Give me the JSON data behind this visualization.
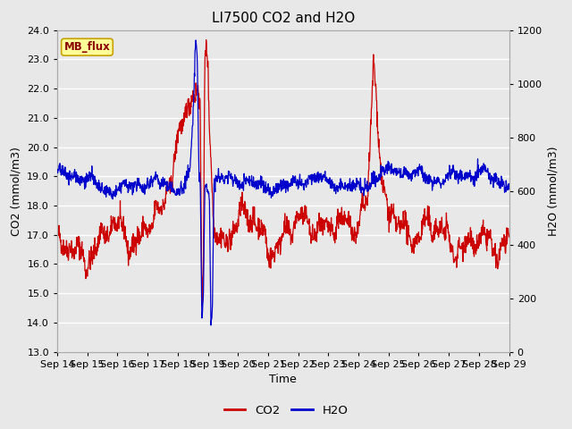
{
  "title": "LI7500 CO2 and H2O",
  "xlabel": "Time",
  "ylabel_left": "CO2 (mmol/m3)",
  "ylabel_right": "H2O (mmol/m3)",
  "ylim_left": [
    13.0,
    24.0
  ],
  "ylim_right": [
    0,
    1200
  ],
  "yticks_left": [
    13.0,
    14.0,
    15.0,
    16.0,
    17.0,
    18.0,
    19.0,
    20.0,
    21.0,
    22.0,
    23.0,
    24.0
  ],
  "ytick_labels_left": [
    "13.0",
    "14.0",
    "15.0",
    "16.0",
    "17.0",
    "18.0",
    "19.0",
    "20.0",
    "21.0",
    "22.0",
    "23.0",
    "24.0"
  ],
  "yticks_right": [
    0,
    200,
    400,
    600,
    800,
    1000,
    1200
  ],
  "ytick_labels_right": [
    "0",
    "200",
    "400",
    "600",
    "800",
    "1000",
    "1200"
  ],
  "xtick_labels": [
    "Sep 14",
    "Sep 15",
    "Sep 16",
    "Sep 17",
    "Sep 18",
    "Sep 19",
    "Sep 20",
    "Sep 21",
    "Sep 22",
    "Sep 23",
    "Sep 24",
    "Sep 25",
    "Sep 26",
    "Sep 27",
    "Sep 28",
    "Sep 29"
  ],
  "co2_color": "#cc0000",
  "h2o_color": "#0000cc",
  "bg_color": "#e8e8e8",
  "plot_bg_color": "#e8e8e8",
  "grid_color": "#ffffff",
  "annotation_text": "MB_flux",
  "annotation_bg": "#ffff99",
  "annotation_border": "#c8a000",
  "legend_co2": "CO2",
  "legend_h2o": "H2O",
  "title_fontsize": 11,
  "label_fontsize": 9,
  "tick_fontsize": 8
}
